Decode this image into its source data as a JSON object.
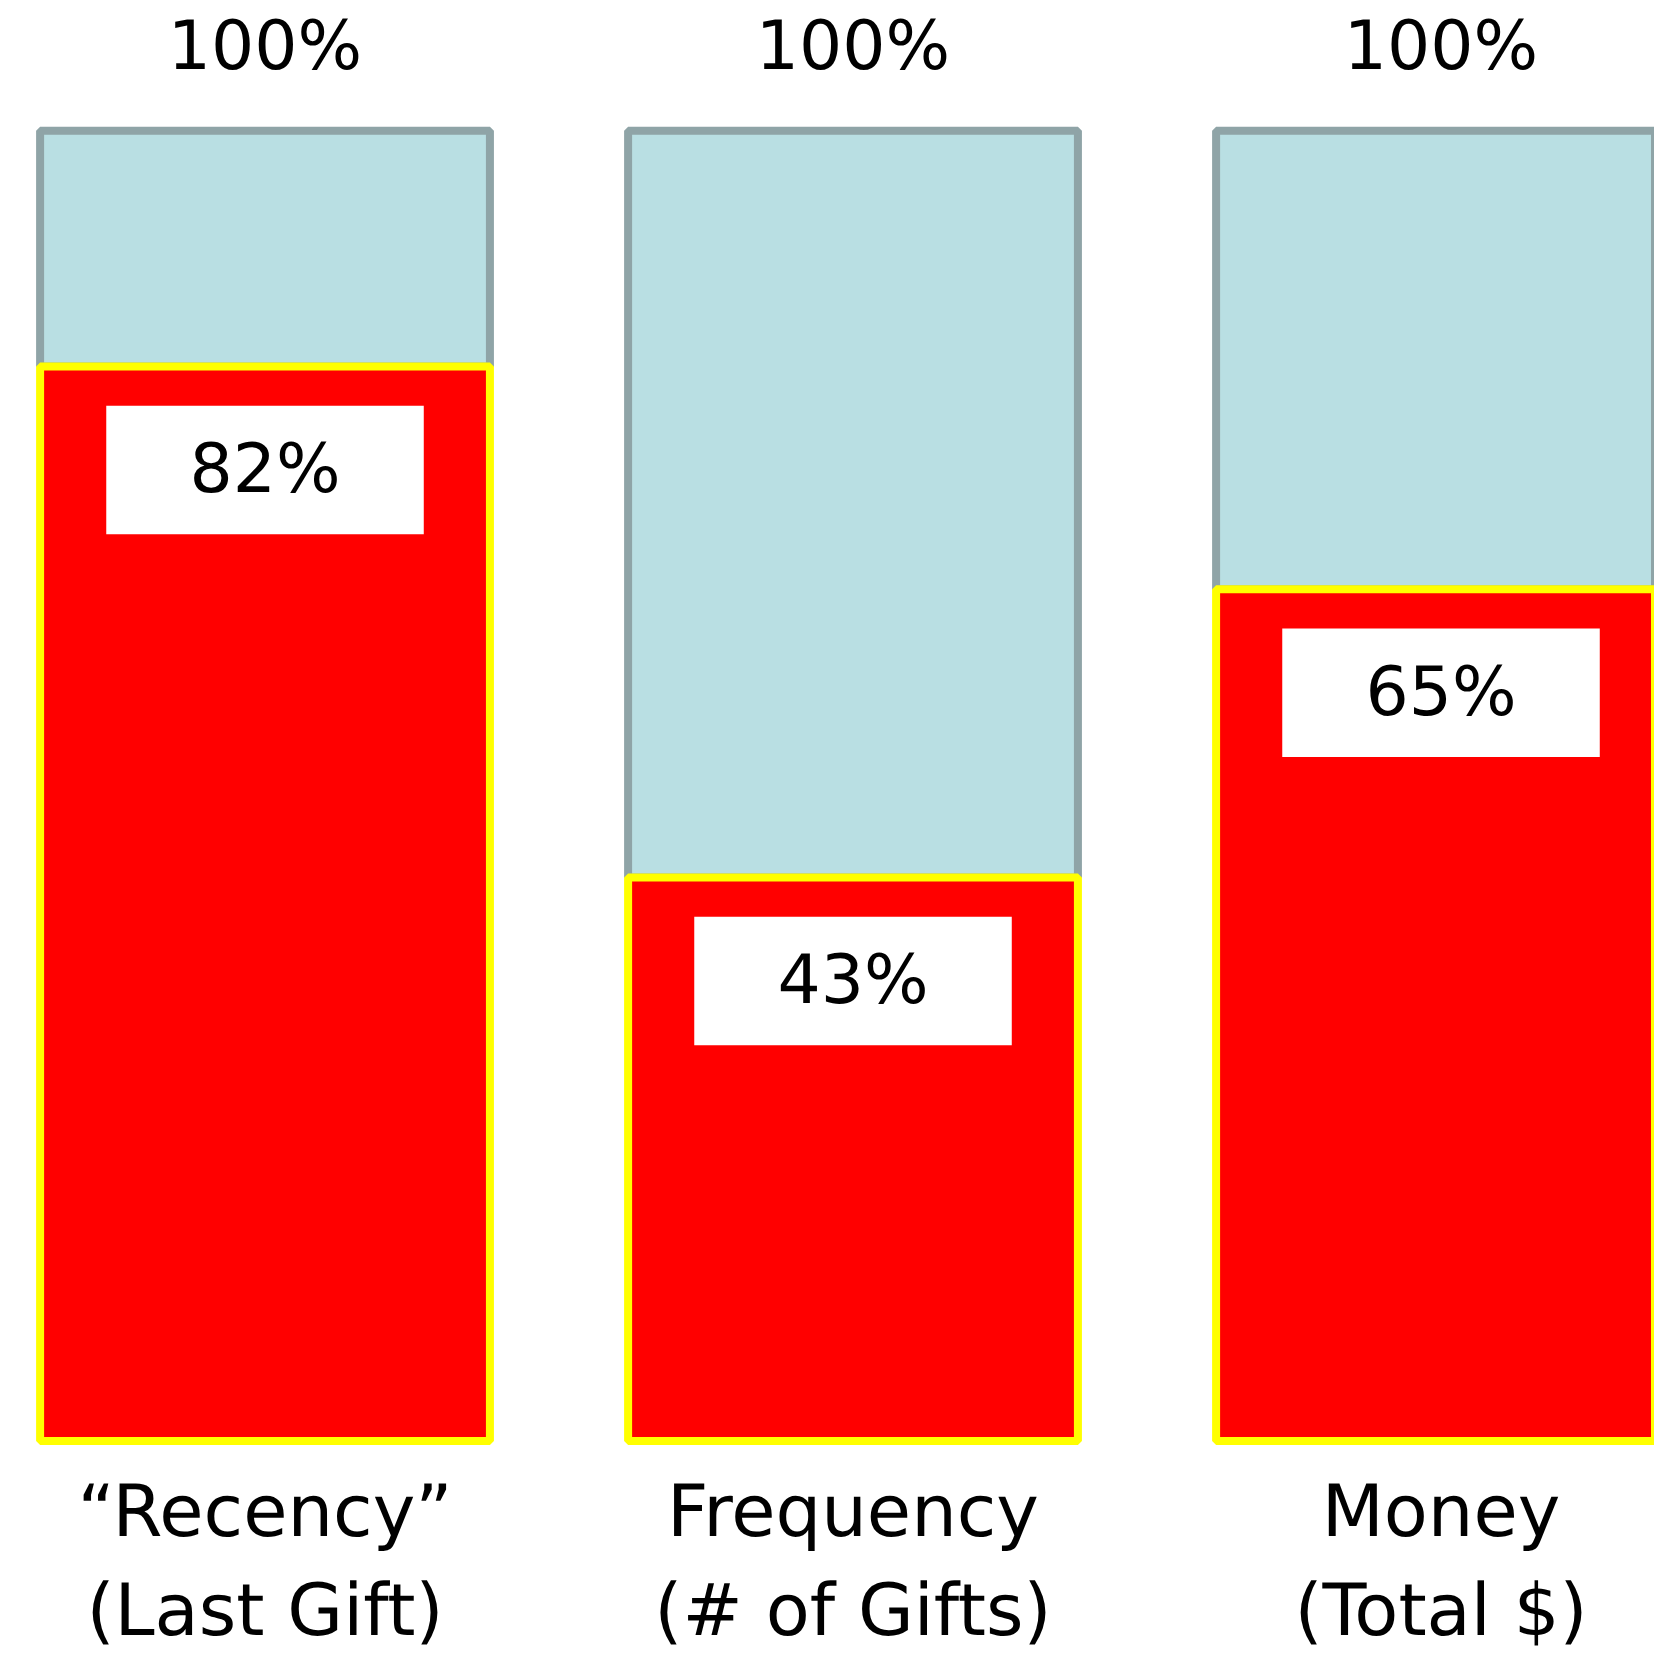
{
  "chart_data": {
    "type": "bar",
    "stacked": true,
    "categories": [
      "“Recency”\n(Last Gift)",
      "Frequency\n(# of Gifts)",
      "Money\n(Total $)"
    ],
    "series": [
      {
        "color": "#ff0000",
        "values": [
          82,
          43,
          65
        ],
        "value_labels": [
          "82%",
          "43%",
          "65%"
        ]
      },
      {
        "color": "#b9dfe3",
        "values": [
          18,
          57,
          35
        ]
      }
    ],
    "totals": [
      "100%",
      "100%",
      "100%"
    ]
  }
}
